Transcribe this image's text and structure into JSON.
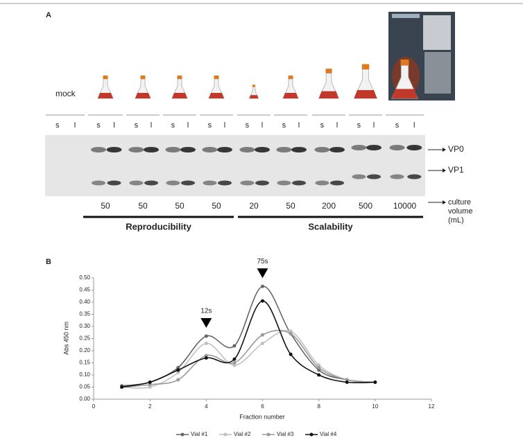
{
  "panel_a": {
    "label": "A",
    "mock": "mock",
    "lanes": [
      [
        "s",
        "l"
      ],
      [
        "s",
        "l"
      ],
      [
        "s",
        "l"
      ],
      [
        "s",
        "l"
      ],
      [
        "s",
        "l"
      ],
      [
        "s",
        "l"
      ],
      [
        "s",
        "l"
      ],
      [
        "s",
        "l"
      ],
      [
        "s",
        "l"
      ],
      [
        "s",
        "l"
      ]
    ],
    "bands": [
      "VP0",
      "VP1"
    ],
    "volume_label": [
      "culture",
      "volume",
      "(mL)"
    ],
    "volumes": [
      50,
      50,
      50,
      50,
      20,
      50,
      200,
      500,
      10000
    ],
    "groups": [
      "Reproducibility",
      "Scalability"
    ]
  },
  "chart_data": {
    "type": "line",
    "panel": "B",
    "xlabel": "Fraction number",
    "ylabel": "Abs 450 nm",
    "x": [
      1,
      2,
      3,
      4,
      5,
      6,
      7,
      8,
      9,
      10
    ],
    "series": [
      {
        "name": "Vial #1",
        "color": "#666666",
        "values": [
          0.055,
          0.07,
          0.13,
          0.26,
          0.22,
          0.465,
          0.27,
          0.12,
          0.08,
          0.07
        ]
      },
      {
        "name": "Vial #2",
        "color": "#c0c0c0",
        "values": [
          0.05,
          0.05,
          0.11,
          0.23,
          0.14,
          0.23,
          0.28,
          0.14,
          0.08,
          0.07
        ]
      },
      {
        "name": "Vial #3",
        "color": "#999999",
        "values": [
          0.05,
          0.06,
          0.08,
          0.18,
          0.15,
          0.265,
          0.27,
          0.13,
          0.08,
          0.07
        ]
      },
      {
        "name": "Vial #4",
        "color": "#111111",
        "values": [
          0.05,
          0.07,
          0.12,
          0.17,
          0.165,
          0.405,
          0.185,
          0.1,
          0.07,
          0.07
        ]
      }
    ],
    "annotations": [
      {
        "text": "12s",
        "x": 4
      },
      {
        "text": "75s",
        "x": 6
      }
    ],
    "xlim": [
      0,
      12
    ],
    "xticks": [
      0,
      2,
      4,
      6,
      8,
      10,
      12
    ],
    "ylim": [
      0,
      0.5
    ],
    "yticks": [
      {
        "value": 0,
        "label": "0.00"
      },
      {
        "value": 0.05,
        "label": "0.05"
      },
      {
        "value": 0.1,
        "label": "0.10"
      },
      {
        "value": 0.15,
        "label": "0.15"
      },
      {
        "value": 0.2,
        "label": "0.20"
      },
      {
        "value": 0.25,
        "label": "0.25"
      },
      {
        "value": 0.3,
        "label": "0.30"
      },
      {
        "value": 0.35,
        "label": "0.35"
      },
      {
        "value": 0.4,
        "label": "0.40"
      },
      {
        "value": 0.45,
        "label": "0.45"
      },
      {
        "value": 0.5,
        "label": "0.50"
      }
    ],
    "legend": "bottom"
  }
}
